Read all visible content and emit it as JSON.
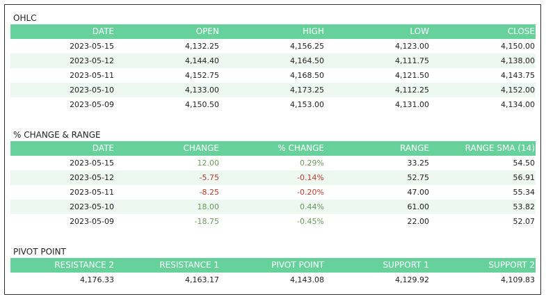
{
  "ohlc": {
    "title": "OHLC",
    "headers": [
      "DATE",
      "OPEN",
      "HIGH",
      "LOW",
      "CLOSE"
    ],
    "rows": [
      [
        "2023-05-15",
        "4,132.25",
        "4,156.25",
        "4,123.00",
        "4,150.00"
      ],
      [
        "2023-05-12",
        "4,144.40",
        "4,164.50",
        "4,111.75",
        "4,138.00"
      ],
      [
        "2023-05-11",
        "4,152.75",
        "4,168.50",
        "4,121.50",
        "4,143.75"
      ],
      [
        "2023-05-10",
        "4,133.00",
        "4,173.25",
        "4,112.25",
        "4,152.00"
      ],
      [
        "2023-05-09",
        "4,150.50",
        "4,153.00",
        "4,131.00",
        "4,134.00"
      ]
    ]
  },
  "change_range": {
    "title": "% CHANGE & RANGE",
    "headers": [
      "DATE",
      "CHANGE",
      "% CHANGE",
      "RANGE",
      "RANGE SMA (14)"
    ],
    "rows": [
      [
        "2023-05-15",
        "12.00",
        "0.29%",
        "33.25",
        "54.50"
      ],
      [
        "2023-05-12",
        "-5.75",
        "-0.14%",
        "52.75",
        "56.91"
      ],
      [
        "2023-05-11",
        "-8.25",
        "-0.20%",
        "47.00",
        "55.34"
      ],
      [
        "2023-05-10",
        "18.00",
        "0.44%",
        "61.00",
        "53.82"
      ],
      [
        "2023-05-09",
        "-18.75",
        "-0.45%",
        "22.00",
        "52.07"
      ]
    ],
    "directions": [
      "positive",
      "negative",
      "negative",
      "positive",
      "negative"
    ],
    "colors": {
      "positive": "#6a9a5a",
      "negative": "#c0392b"
    }
  },
  "pivot": {
    "title": "PIVOT POINT",
    "headers": [
      "RESISTANCE 2",
      "RESISTANCE 1",
      "PIVOT POINT",
      "SUPPORT 1",
      "SUPPORT 2"
    ],
    "rows": [
      [
        "4,176.33",
        "4,163.17",
        "4,143.08",
        "4,129.92",
        "4,109.83"
      ]
    ]
  },
  "colors": {
    "header_bg": "#66d19a",
    "alt_row_bg": "#ecf8f0",
    "border": "#333333"
  }
}
